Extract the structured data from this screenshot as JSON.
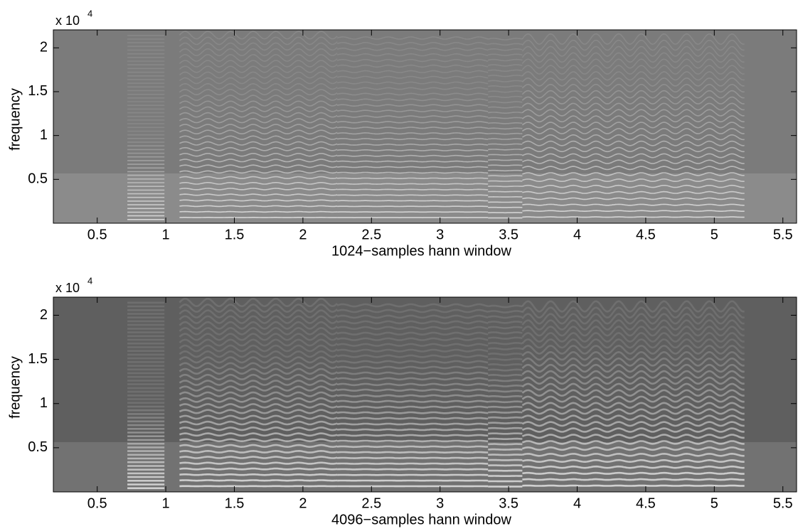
{
  "chart_data": [
    {
      "type": "spectrogram",
      "xlabel": "1024−samples hann window",
      "ylabel": "frequency",
      "y_exponent_base": "x 10",
      "y_exponent": "4",
      "xlim": [
        0.18,
        5.6
      ],
      "xticks": [
        0.5,
        1,
        1.5,
        2,
        2.5,
        3,
        3.5,
        4,
        4.5,
        5,
        5.5
      ],
      "ylim": [
        0,
        22050
      ],
      "yticks": [
        {
          "value": 5000,
          "label": "0.5"
        },
        {
          "value": 10000,
          "label": "1"
        },
        {
          "value": 15000,
          "label": "1.5"
        },
        {
          "value": 20000,
          "label": "2"
        }
      ],
      "colormap": "gray"
    },
    {
      "type": "spectrogram",
      "xlabel": "4096−samples hann window",
      "ylabel": "frequency",
      "y_exponent_base": "x 10",
      "y_exponent": "4",
      "xlim": [
        0.18,
        5.6
      ],
      "xticks": [
        0.5,
        1,
        1.5,
        2,
        2.5,
        3,
        3.5,
        4,
        4.5,
        5,
        5.5
      ],
      "ylim": [
        0,
        22050
      ],
      "yticks": [
        {
          "value": 5000,
          "label": "0.5"
        },
        {
          "value": 10000,
          "label": "1"
        },
        {
          "value": 15000,
          "label": "1.5"
        },
        {
          "value": 20000,
          "label": "2"
        }
      ],
      "colormap": "gray"
    }
  ]
}
